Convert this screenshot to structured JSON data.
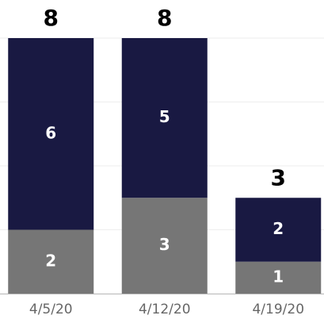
{
  "chart_data": {
    "type": "stacked_bar",
    "categories": [
      "4/5/20",
      "4/12/20",
      "4/19/20"
    ],
    "series": [
      {
        "color": "#767676",
        "values": [
          2,
          3,
          1
        ]
      },
      {
        "color": "#191942",
        "values": [
          6,
          5,
          2
        ]
      }
    ],
    "totals": [
      8,
      8,
      3
    ],
    "ylim": [
      0,
      8
    ],
    "yticks": [
      0,
      2,
      4,
      6,
      8
    ],
    "grid": true
  }
}
